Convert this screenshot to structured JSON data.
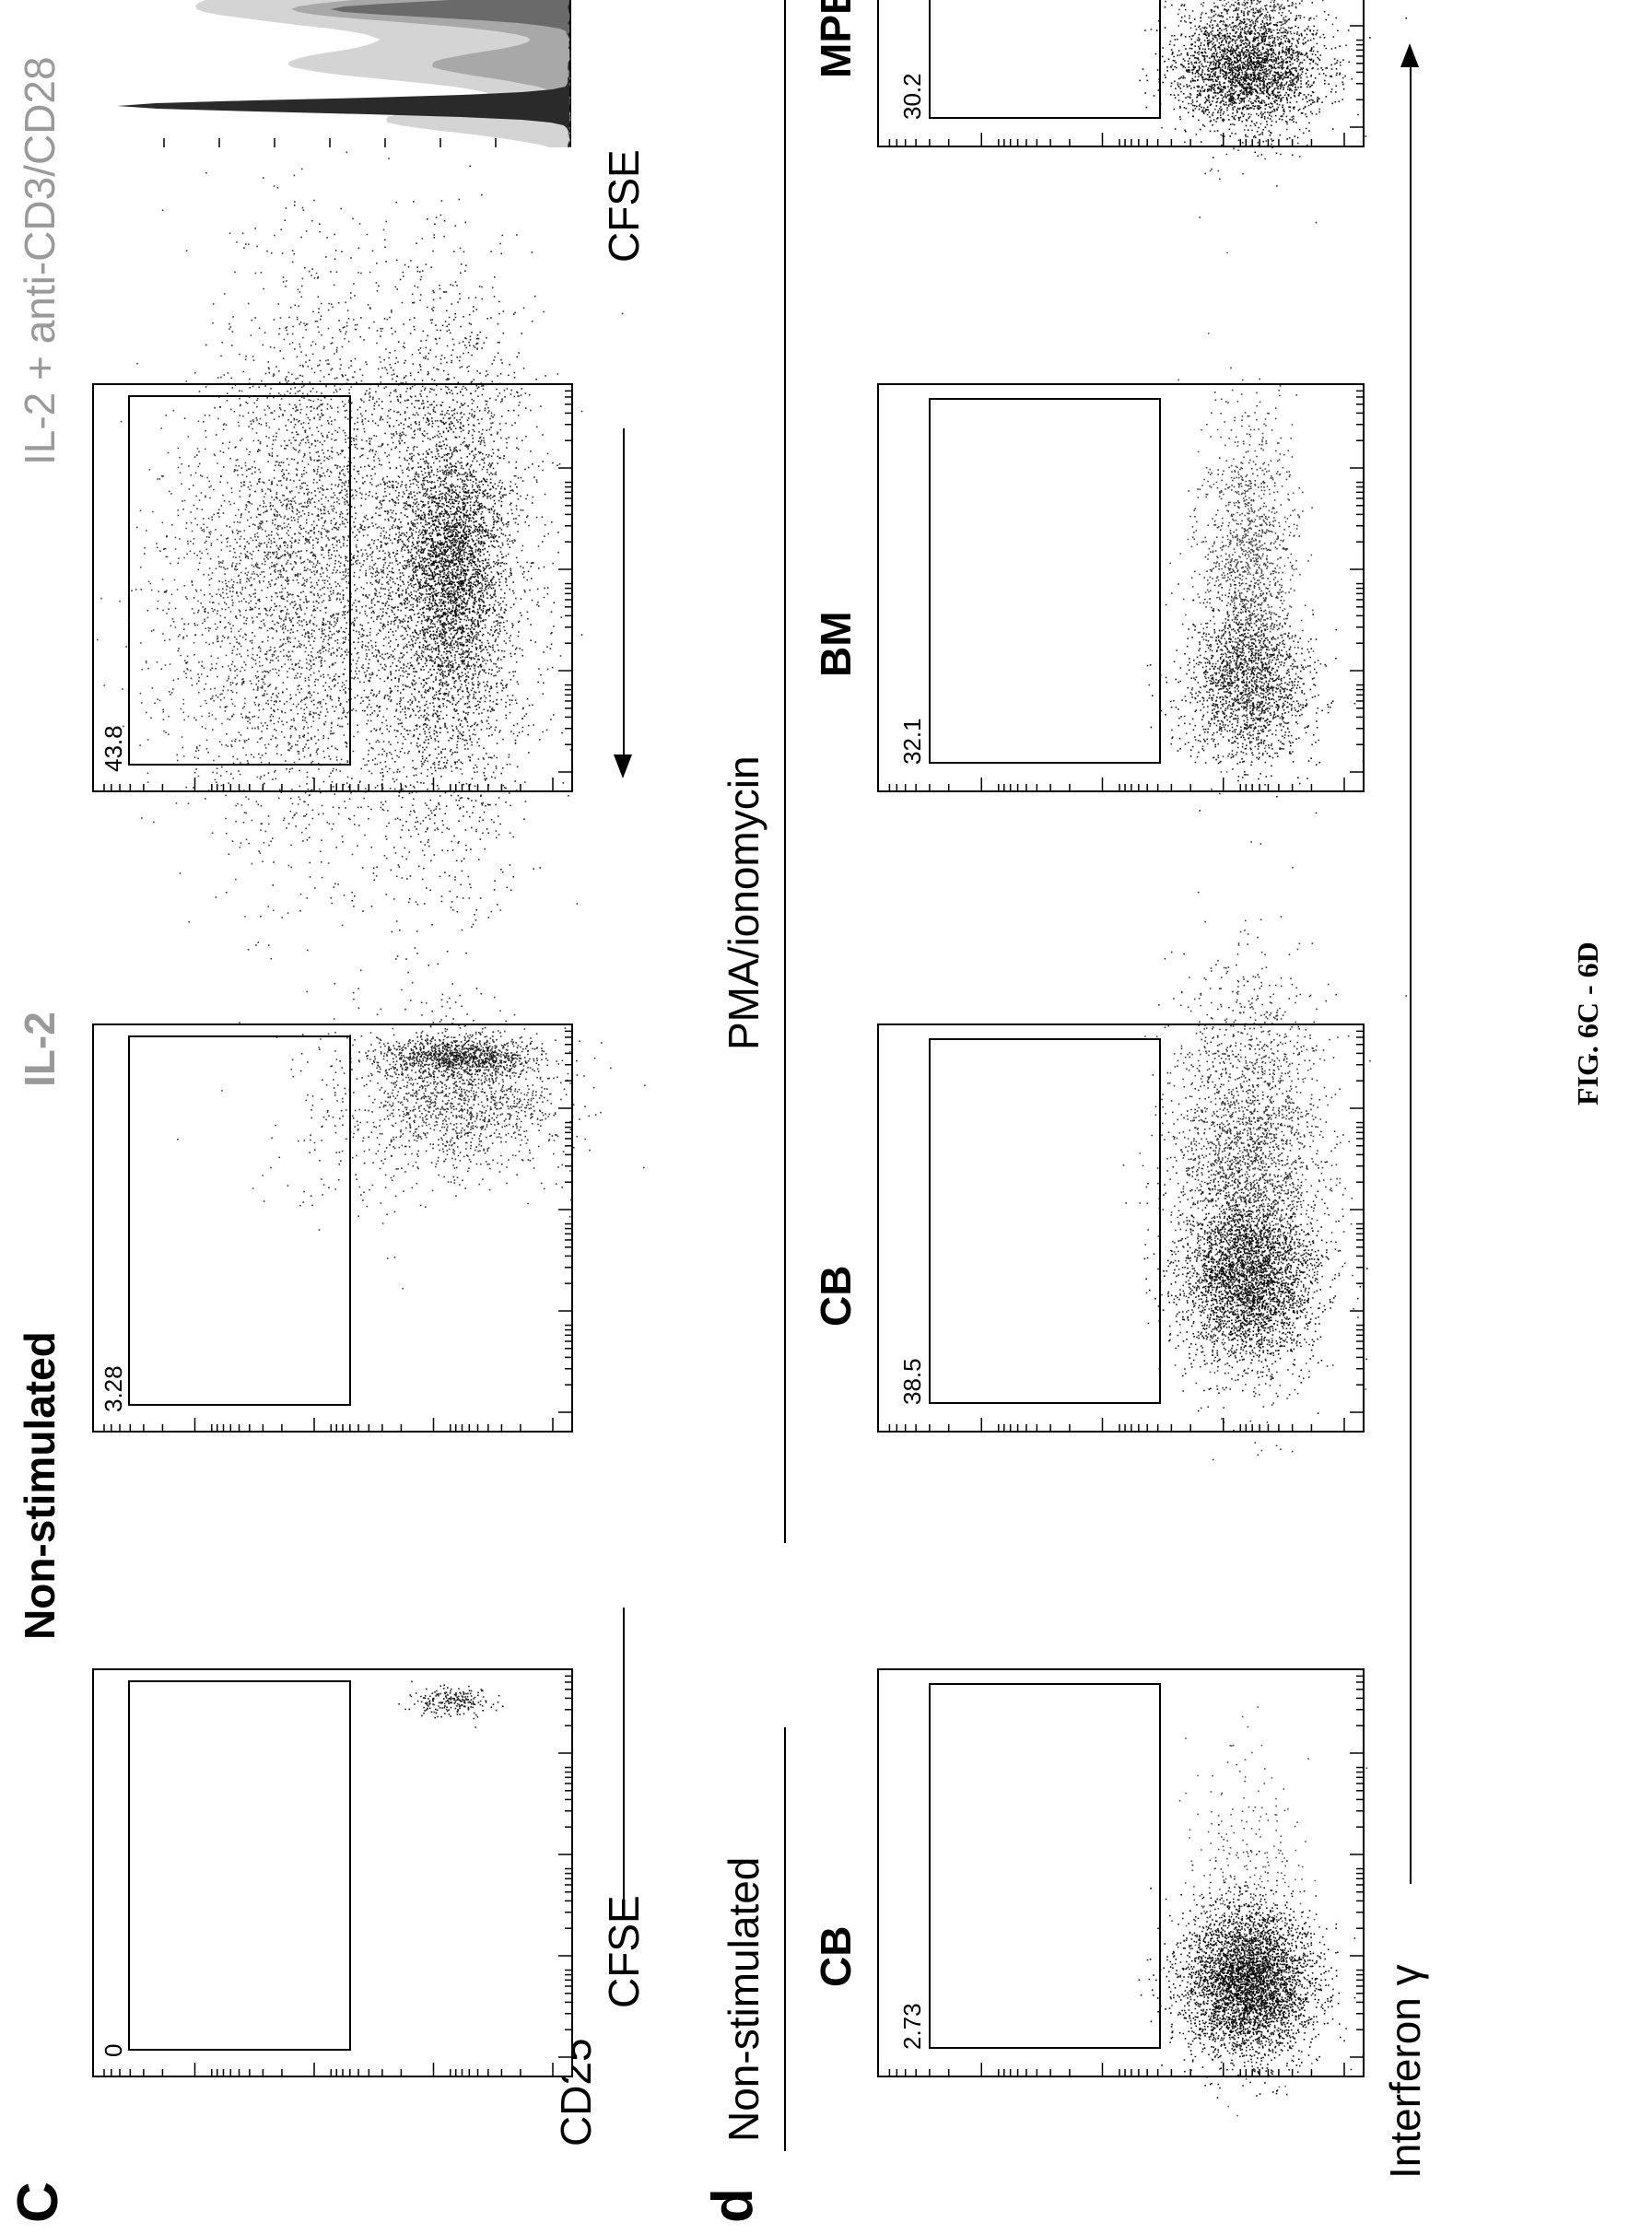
{
  "panel_c": {
    "letter": "C",
    "heading_nonstim": "Non-stimulated",
    "heading_il2": "IL-2",
    "heading_il2_cd3": "IL-2 + anti-CD3/CD28",
    "ylabel": "CD25",
    "xlabel_left": "CFSE",
    "xlabel_hist": "CFSE",
    "gates": [
      "0",
      "3.28",
      "43.8"
    ]
  },
  "panel_d": {
    "letter": "d",
    "heading_nonstim": "Non-stimulated",
    "heading_pma": "PMA/ionomycin",
    "groups": [
      "CB",
      "CB",
      "BM",
      "MPB"
    ],
    "xlabel": "Interferon γ",
    "gates": [
      "2.73",
      "38.5",
      "32.1",
      "30.2"
    ]
  },
  "caption": "FIG. 6C - 6D",
  "chart_data": [
    {
      "type": "scatter",
      "panel": "C",
      "title": "Non-stimulated",
      "xlabel": "CFSE",
      "ylabel": "CD25",
      "gate_percent": 0
    },
    {
      "type": "scatter",
      "panel": "C",
      "title": "IL-2",
      "xlabel": "CFSE",
      "ylabel": "CD25",
      "gate_percent": 3.28
    },
    {
      "type": "scatter",
      "panel": "C",
      "title": "IL-2 + anti-CD3/CD28",
      "xlabel": "CFSE",
      "ylabel": "CD25",
      "gate_percent": 43.8
    },
    {
      "type": "area",
      "panel": "C",
      "xlabel": "CFSE",
      "description_series": [
        "Non-stimulated",
        "IL-2",
        "IL-2 + anti-CD3/CD28"
      ]
    },
    {
      "type": "scatter",
      "panel": "d",
      "title": "CB",
      "condition": "Non-stimulated",
      "xlabel": "Interferon γ",
      "gate_percent": 2.73
    },
    {
      "type": "scatter",
      "panel": "d",
      "title": "CB",
      "condition": "PMA/ionomycin",
      "xlabel": "Interferon γ",
      "gate_percent": 38.5
    },
    {
      "type": "scatter",
      "panel": "d",
      "title": "BM",
      "condition": "PMA/ionomycin",
      "xlabel": "Interferon γ",
      "gate_percent": 32.1
    },
    {
      "type": "scatter",
      "panel": "d",
      "title": "MPB",
      "condition": "PMA/ionomycin",
      "xlabel": "Interferon γ",
      "gate_percent": 30.2
    }
  ]
}
